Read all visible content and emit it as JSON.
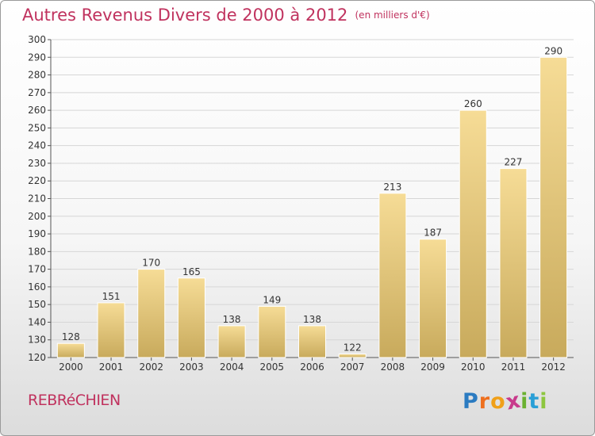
{
  "title": "Autres Revenus Divers de 2000 à 2012",
  "subtitle": "(en milliers d'€)",
  "commune": "REBRéCHIEN",
  "logo": {
    "text": "Proxiti",
    "letters": [
      "P",
      "r",
      "o",
      "x",
      "i",
      "t",
      "i"
    ],
    "colors": [
      "#2b7bc1",
      "#ee6f1e",
      "#f0a019",
      "#c83a8c",
      "#6bb131",
      "#2a9fd6",
      "#8dc63f"
    ]
  },
  "colors": {
    "bar_top": "#f6dc96",
    "bar_bottom": "#c8aa5c",
    "grid": "#d6d6d6",
    "axis": "#555555",
    "text": "#333333",
    "accent": "#c0325e"
  },
  "chart_data": {
    "type": "bar",
    "categories": [
      "2000",
      "2001",
      "2002",
      "2003",
      "2004",
      "2005",
      "2006",
      "2007",
      "2008",
      "2009",
      "2010",
      "2011",
      "2012"
    ],
    "values": [
      128,
      151,
      170,
      165,
      138,
      149,
      138,
      122,
      213,
      187,
      260,
      227,
      290
    ],
    "ylim": [
      120,
      300
    ],
    "ytick_step": 10,
    "grid": true,
    "title": "Autres Revenus Divers de 2000 à 2012",
    "subtitle": "(en milliers d'€)"
  }
}
